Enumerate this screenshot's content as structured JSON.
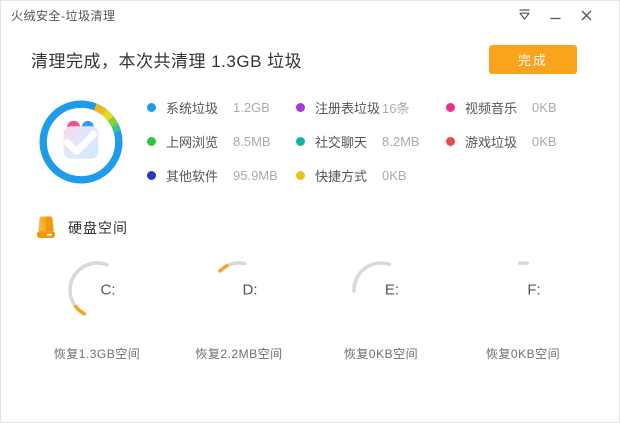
{
  "window": {
    "title": "火绒安全-垃圾清理"
  },
  "header": {
    "title": "清理完成，本次共清理 1.3GB 垃圾",
    "done_label": "完成"
  },
  "summary": {
    "items": [
      {
        "label": "系统垃圾",
        "value": "1.2GB",
        "color": "#1e9bea"
      },
      {
        "label": "注册表垃圾",
        "value": "16条",
        "color": "#a43bd4"
      },
      {
        "label": "视频音乐",
        "value": "0KB",
        "color": "#ee2f90"
      },
      {
        "label": "上网浏览",
        "value": "8.5MB",
        "color": "#2ec63a"
      },
      {
        "label": "社交聊天",
        "value": "8.2MB",
        "color": "#10b3a3"
      },
      {
        "label": "游戏垃圾",
        "value": "0KB",
        "color": "#ea4b4b"
      },
      {
        "label": "其他软件",
        "value": "95.9MB",
        "color": "#2c35c3"
      },
      {
        "label": "快捷方式",
        "value": "0KB",
        "color": "#eec414"
      }
    ]
  },
  "disk": {
    "title": "硬盘空间",
    "disks": [
      {
        "name": "C:",
        "recovered": "恢复1.3GB空间",
        "arc": {
          "start": -152,
          "end": 22,
          "tip": 24
        }
      },
      {
        "name": "D:",
        "recovered": "恢复2.2MB空间",
        "arc": {
          "start": -45,
          "end": 12,
          "tip": 18
        }
      },
      {
        "name": "E:",
        "recovered": "恢复0KB空间",
        "arc": {
          "start": -92,
          "end": 18,
          "tip": 0
        }
      },
      {
        "name": "F:",
        "recovered": "恢复0KB空间",
        "arc": {
          "start": -7,
          "end": 9,
          "tip": 0
        }
      }
    ]
  },
  "colors": {
    "accent_orange": "#faa41e",
    "gauge_track": "#d9d9d9",
    "gauge_tip": "#f5a623",
    "ring_blue": "#1e9bea"
  }
}
